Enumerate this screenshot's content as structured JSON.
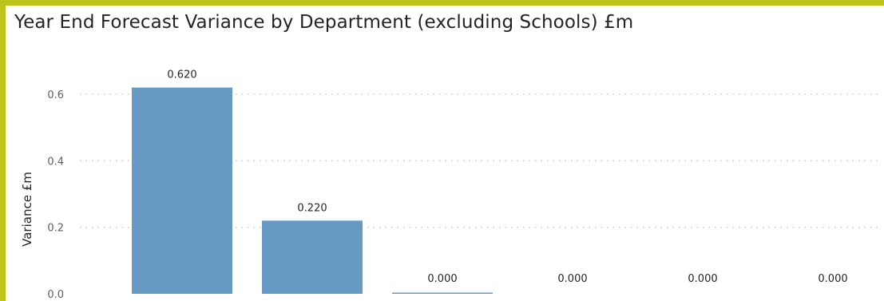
{
  "chart_data": {
    "type": "bar",
    "title": "Year End Forecast Variance by Department (excluding Schools) £m",
    "ylabel": "Variance £m",
    "xlabel": "",
    "categories": [
      "",
      "",
      "",
      "",
      "",
      ""
    ],
    "values": [
      0.62,
      0.22,
      0.0,
      0.0,
      0.0,
      0.0
    ],
    "data_labels": [
      "0.620",
      "0.220",
      "0.000",
      "0.000",
      "0.000",
      "0.000"
    ],
    "ylim": [
      0,
      0.6
    ],
    "y_ticks": [
      "0.0",
      "0.2",
      "0.4",
      "0.6"
    ],
    "y_tick_values": [
      0,
      0.2,
      0.4,
      0.6
    ],
    "grid": true,
    "legend": "none"
  },
  "colors": {
    "border": "#bcc31a",
    "bar": "#6699c4",
    "grid": "#c8c6c4"
  }
}
